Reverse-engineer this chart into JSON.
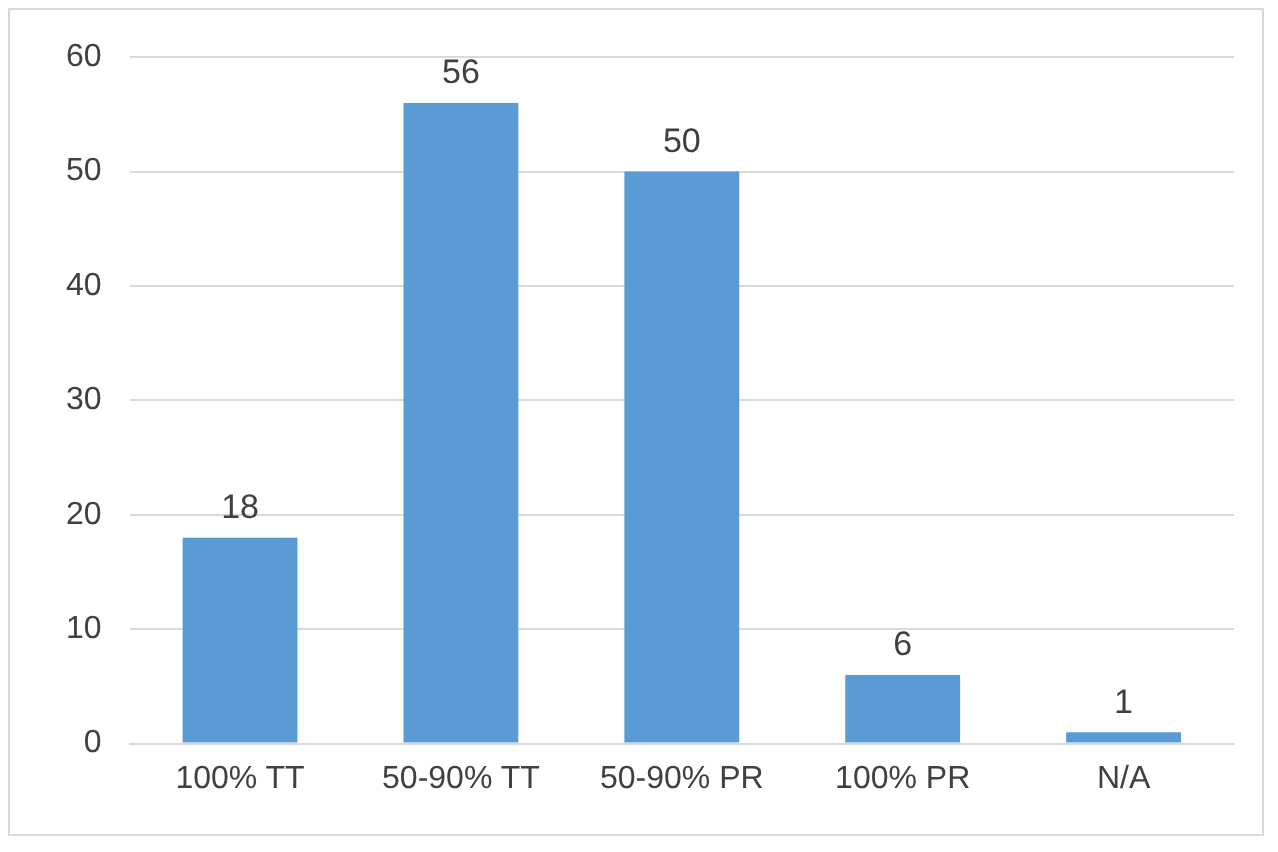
{
  "chart_data": {
    "type": "bar",
    "categories": [
      "100% TT",
      "50-90% TT",
      "50-90% PR",
      "100% PR",
      "N/A"
    ],
    "values": [
      18,
      56,
      50,
      6,
      1
    ],
    "color": "#5b9bd5",
    "ylim": [
      0,
      60
    ],
    "yticks": [
      0,
      10,
      20,
      30,
      40,
      50,
      60
    ],
    "grid": "y",
    "data_labels": true
  }
}
